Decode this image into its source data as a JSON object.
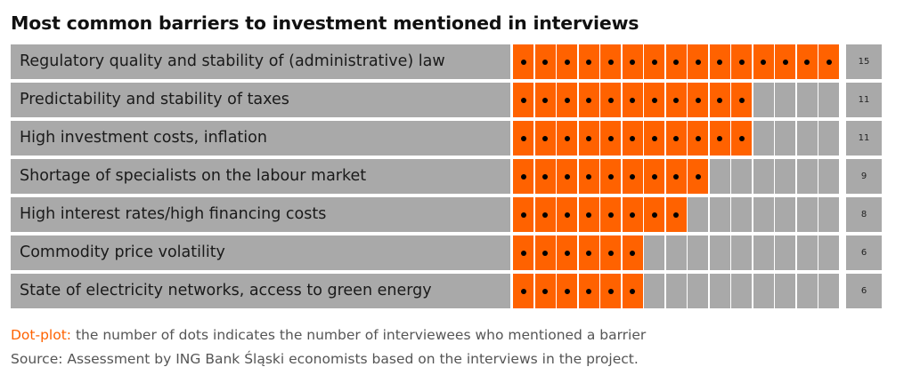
{
  "title": "Most common barriers to investment mentioned in interviews",
  "chart_data": {
    "type": "dot-plot",
    "title": "Most common barriers to investment mentioned in interviews",
    "max_dots": 15,
    "fill_color": "#ff6200",
    "empty_color": "#a9a9a9",
    "dot_color": "#000000",
    "categories": [
      "Regulatory quality and stability of (administrative) law",
      "Predictability and stability of taxes",
      "High investment costs, inflation",
      "Shortage of specialists on the labour market",
      "High interest rates/high financing costs",
      "Commodity price volatility",
      "State of electricity networks, access to green energy"
    ],
    "values": [
      15,
      11,
      11,
      9,
      8,
      6,
      6
    ]
  },
  "footnote": {
    "lead": "Dot-plot:",
    "text": " the number of dots indicates the number of interviewees who mentioned a barrier"
  },
  "source": "Source: Assessment by ING Bank Śląski economists based on the interviews in the project."
}
